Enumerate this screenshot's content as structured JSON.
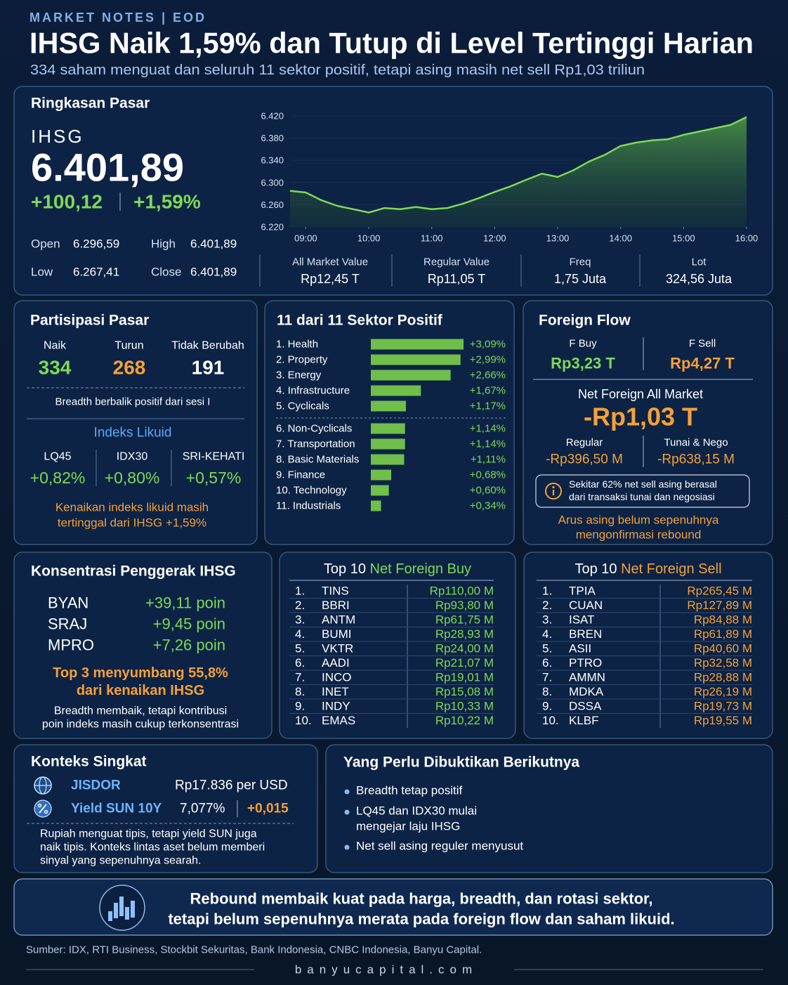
{
  "header": {
    "kicker": "MARKET NOTES | EOD",
    "title": "IHSG Naik 1,59% dan Tutup di Level Tertinggi Harian",
    "subtitle": "334 saham menguat dan seluruh 11 sektor positif, tetapi asing masih net sell Rp1,03 triliun"
  },
  "summary": {
    "title": "Ringkasan Pasar",
    "index": "IHSG",
    "level": "6.401,89",
    "change": "+100,12",
    "change_pct": "+1,59%",
    "ohlc": [
      {
        "label": "Open",
        "value": "6.296,59"
      },
      {
        "label": "High",
        "value": "6.401,89"
      },
      {
        "label": "Low",
        "value": "6.267,41"
      },
      {
        "label": "Close",
        "value": "6.401,89"
      }
    ],
    "stats": [
      {
        "label": "All Market Value",
        "value": "Rp12,45 T"
      },
      {
        "label": "Regular Value",
        "value": "Rp11,05 T"
      },
      {
        "label": "Freq",
        "value": "1,75 Juta"
      },
      {
        "label": "Lot",
        "value": "324,56 Juta"
      }
    ]
  },
  "chart_data": [
    {
      "type": "line",
      "color": "#7ed957",
      "x": [
        8.75,
        9,
        9.25,
        9.5,
        9.75,
        10,
        10.25,
        10.5,
        10.75,
        11,
        11.25,
        11.5,
        11.75,
        12,
        12.25,
        12.5,
        12.75,
        13,
        13.25,
        13.5,
        13.75,
        14,
        14.25,
        14.5,
        14.75,
        15,
        15.25,
        15.5,
        15.75,
        16
      ],
      "values": [
        6285,
        6282,
        6268,
        6258,
        6252,
        6246,
        6254,
        6252,
        6256,
        6252,
        6254,
        6262,
        6272,
        6283,
        6293,
        6305,
        6316,
        6310,
        6322,
        6338,
        6350,
        6366,
        6372,
        6376,
        6378,
        6386,
        6392,
        6398,
        6404,
        6418
      ],
      "xlim": [
        8.75,
        16
      ],
      "ylim": [
        6220,
        6420
      ],
      "xticks": [
        {
          "value": 9,
          "label": "09:00"
        },
        {
          "value": 10,
          "label": "10:00"
        },
        {
          "value": 11,
          "label": "11:00"
        },
        {
          "value": 12,
          "label": "12:00"
        },
        {
          "value": 13,
          "label": "13:00"
        },
        {
          "value": 14,
          "label": "14:00"
        },
        {
          "value": 15,
          "label": "15:00"
        },
        {
          "value": 16,
          "label": "16:00"
        }
      ],
      "yticks": [
        {
          "value": 6220,
          "label": "6.220"
        },
        {
          "value": 6260,
          "label": "6.260"
        },
        {
          "value": 6300,
          "label": "6.300"
        },
        {
          "value": 6340,
          "label": "6.340"
        },
        {
          "value": 6380,
          "label": "6.380"
        },
        {
          "value": 6420,
          "label": "6.420"
        }
      ]
    },
    {
      "type": "bar",
      "title": "11 dari 11 Sektor Positif",
      "color": "#6fbf4a",
      "categories": [
        "1. Health",
        "2. Property",
        "3. Energy",
        "4. Infrastructure",
        "5. Cyclicals",
        "6. Non-Cyclicals",
        "7. Transportation",
        "8. Basic Materials",
        "9. Finance",
        "10. Technology",
        "11. Industrials"
      ],
      "values": [
        3.09,
        2.99,
        2.66,
        1.67,
        1.17,
        1.14,
        1.14,
        1.11,
        0.68,
        0.6,
        0.34
      ],
      "value_labels": [
        "+3,09%",
        "+2,99%",
        "+2,66%",
        "+1,67%",
        "+1,17%",
        "+1,14%",
        "+1,14%",
        "+1,11%",
        "+0,68%",
        "+0,60%",
        "+0,34%"
      ]
    }
  ],
  "participation": {
    "title": "Partisipasi Pasar",
    "items": [
      {
        "label": "Naik",
        "value": "334"
      },
      {
        "label": "Turun",
        "value": "268"
      },
      {
        "label": "Tidak Berubah",
        "value": "191"
      }
    ],
    "note": "Breadth berbalik positif dari sesi I",
    "liquid_title": "Indeks Likuid",
    "liquid": [
      {
        "label": "LQ45",
        "value": "+0,82%"
      },
      {
        "label": "IDX30",
        "value": "+0,80%"
      },
      {
        "label": "SRI-KEHATI",
        "value": "+0,57%"
      }
    ],
    "liquid_note": [
      "Kenaikan indeks likuid masih",
      "tertinggal dari IHSG +1,59%"
    ]
  },
  "foreign": {
    "title": "Foreign Flow",
    "buy_label": "F Buy",
    "buy": "Rp3,23 T",
    "sell_label": "F Sell",
    "sell": "Rp4,27 T",
    "net_label": "Net Foreign All Market",
    "net": "-Rp1,03 T",
    "regular_label": "Regular",
    "regular": "-Rp396,50 M",
    "cash_label": "Tunai & Nego",
    "cash": "-Rp638,15 M",
    "info": [
      "Sekitar 62% net sell asing berasal",
      "dari transaksi tunai dan negosiasi"
    ],
    "note": [
      "Arus asing belum sepenuhnya",
      "mengonfirmasi rebound"
    ]
  },
  "movers": {
    "title": "Konsentrasi Penggerak IHSG",
    "items": [
      {
        "ticker": "BYAN",
        "points": "+39,11 poin"
      },
      {
        "ticker": "SRAJ",
        "points": "+9,45 poin"
      },
      {
        "ticker": "MPRO",
        "points": "+7,26 poin"
      }
    ],
    "highlight": [
      "Top 3 menyumbang 55,8%",
      "dari kenaikan IHSG"
    ],
    "note": [
      "Breadth membaik, tetapi kontribusi",
      "poin indeks masih cukup terkonsentrasi"
    ]
  },
  "top_buy": {
    "title_prefix": "Top 10",
    "title_em": "Net Foreign Buy",
    "rows": [
      {
        "rank": "1.",
        "ticker": "TINS",
        "value": "Rp110,00 M"
      },
      {
        "rank": "2.",
        "ticker": "BBRI",
        "value": "Rp93,80 M"
      },
      {
        "rank": "3.",
        "ticker": "ANTM",
        "value": "Rp61,75 M"
      },
      {
        "rank": "4.",
        "ticker": "BUMI",
        "value": "Rp28,93 M"
      },
      {
        "rank": "5.",
        "ticker": "VKTR",
        "value": "Rp24,00 M"
      },
      {
        "rank": "6.",
        "ticker": "AADI",
        "value": "Rp21,07 M"
      },
      {
        "rank": "7.",
        "ticker": "INCO",
        "value": "Rp19,01 M"
      },
      {
        "rank": "8.",
        "ticker": "INET",
        "value": "Rp15,08 M"
      },
      {
        "rank": "9.",
        "ticker": "INDY",
        "value": "Rp10,33 M"
      },
      {
        "rank": "10.",
        "ticker": "EMAS",
        "value": "Rp10,22 M"
      }
    ]
  },
  "top_sell": {
    "title_prefix": "Top 10",
    "title_em": "Net Foreign Sell",
    "rows": [
      {
        "rank": "1.",
        "ticker": "TPIA",
        "value": "Rp265,45 M"
      },
      {
        "rank": "2.",
        "ticker": "CUAN",
        "value": "Rp127,89 M"
      },
      {
        "rank": "3.",
        "ticker": "ISAT",
        "value": "Rp84,88 M"
      },
      {
        "rank": "4.",
        "ticker": "BREN",
        "value": "Rp61,89 M"
      },
      {
        "rank": "5.",
        "ticker": "ASII",
        "value": "Rp40,60 M"
      },
      {
        "rank": "6.",
        "ticker": "PTRO",
        "value": "Rp32,58 M"
      },
      {
        "rank": "7.",
        "ticker": "AMMN",
        "value": "Rp28,88 M"
      },
      {
        "rank": "8.",
        "ticker": "MDKA",
        "value": "Rp26,19 M"
      },
      {
        "rank": "9.",
        "ticker": "DSSA",
        "value": "Rp19,73 M"
      },
      {
        "rank": "10.",
        "ticker": "KLBF",
        "value": "Rp19,55 M"
      }
    ]
  },
  "context": {
    "title": "Konteks Singkat",
    "rows": [
      {
        "label": "JISDOR",
        "value": "Rp17.836 per USD"
      },
      {
        "label": "Yield SUN 10Y",
        "value": "7,077%",
        "change": "+0,015"
      }
    ],
    "note": [
      "Rupiah menguat tipis, tetapi yield SUN juga",
      "naik tipis.  Konteks lintas aset belum memberi",
      "sinyal yang sepenuhnya searah."
    ]
  },
  "next": {
    "title": "Yang Perlu Dibuktikan Berikutnya",
    "items": [
      [
        "Breadth tetap positif"
      ],
      [
        "LQ45 dan IDX30 mulai",
        "mengejar  laju IHSG"
      ],
      [
        "Net sell asing reguler menyusut"
      ]
    ]
  },
  "conclusion": {
    "lines": [
      "Rebound membaik kuat pada harga, breadth, dan rotasi sektor,",
      "tetapi belum sepenuhnya merata pada foreign flow dan saham likuid."
    ]
  },
  "footer": {
    "source": "Sumber: IDX, RTI Business, Stockbit Sekuritas, Bank Indonesia, CNBC Indonesia, Banyu Capital.",
    "site": "banyucapital.com"
  }
}
